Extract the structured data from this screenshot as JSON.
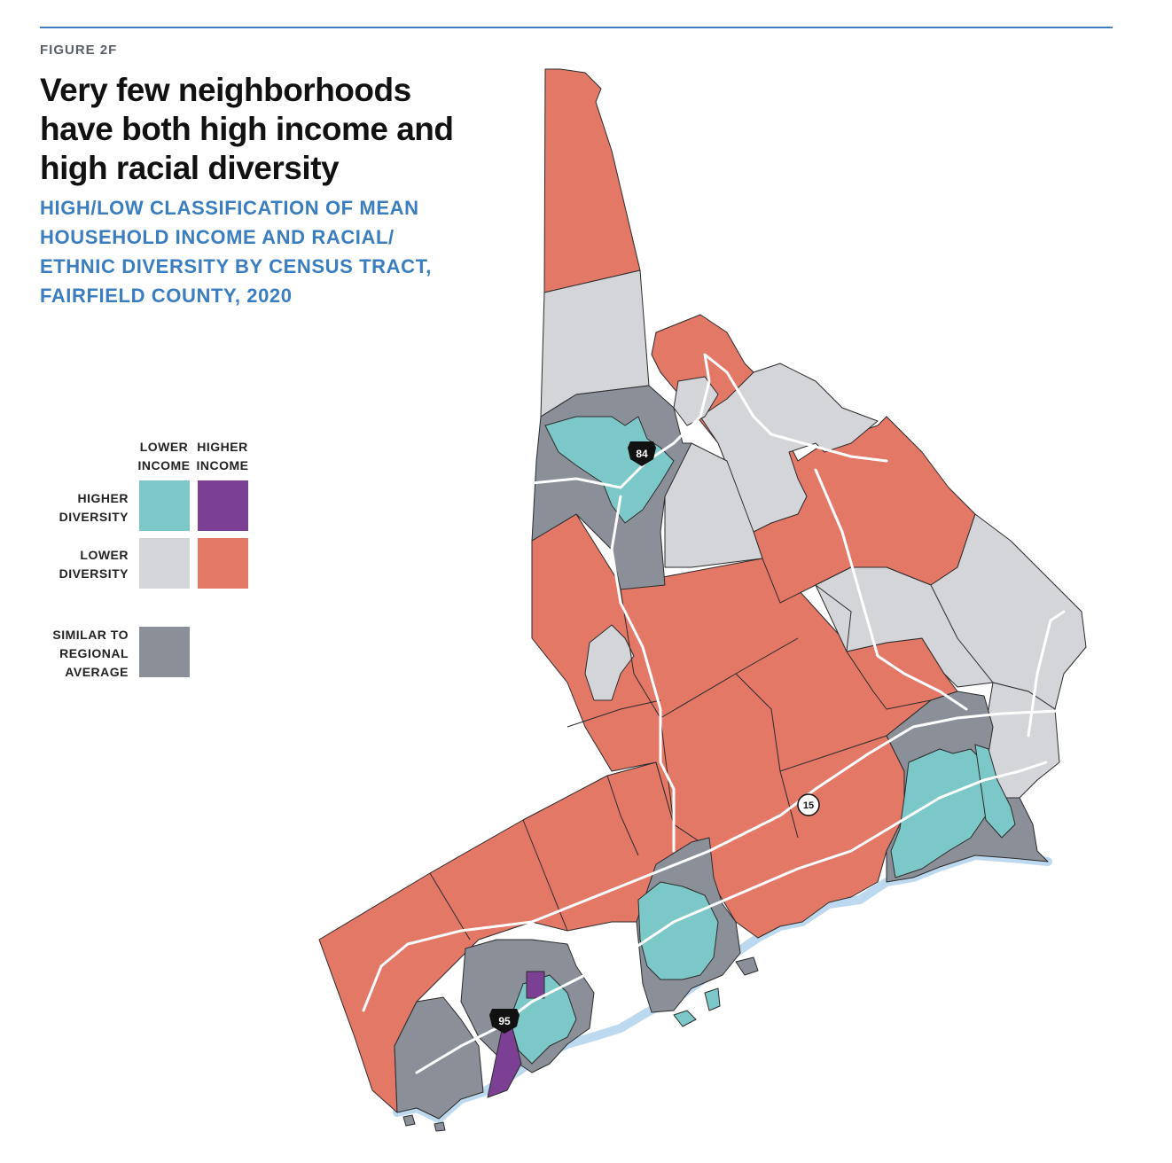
{
  "figure": {
    "label": "FIGURE 2F",
    "title": "Very few neighborhoods have both high income and high racial diversity",
    "subtitle": "HIGH/LOW CLASSIFICATION OF MEAN HOUSEHOLD INCOME AND RACIAL/ ETHNIC DIVERSITY BY CENSUS TRACT, FAIRFIELD COUNTY, 2020"
  },
  "legend": {
    "columns": [
      "LOWER INCOME",
      "HIGHER INCOME"
    ],
    "rows": [
      "HIGHER DIVERSITY",
      "LOWER DIVERSITY"
    ],
    "similar_label": "SIMILAR TO REGIONAL AVERAGE",
    "colors": {
      "lower_income_higher_diversity": "#7cc8c8",
      "higher_income_higher_diversity": "#7b3f94",
      "lower_income_lower_diversity": "#d4d5d9",
      "higher_income_lower_diversity": "#e47867",
      "similar": "#8a8f98"
    }
  },
  "highways": [
    {
      "shield": "84",
      "type": "interstate"
    },
    {
      "shield": "15",
      "type": "state"
    },
    {
      "shield": "95",
      "type": "interstate"
    }
  ]
}
